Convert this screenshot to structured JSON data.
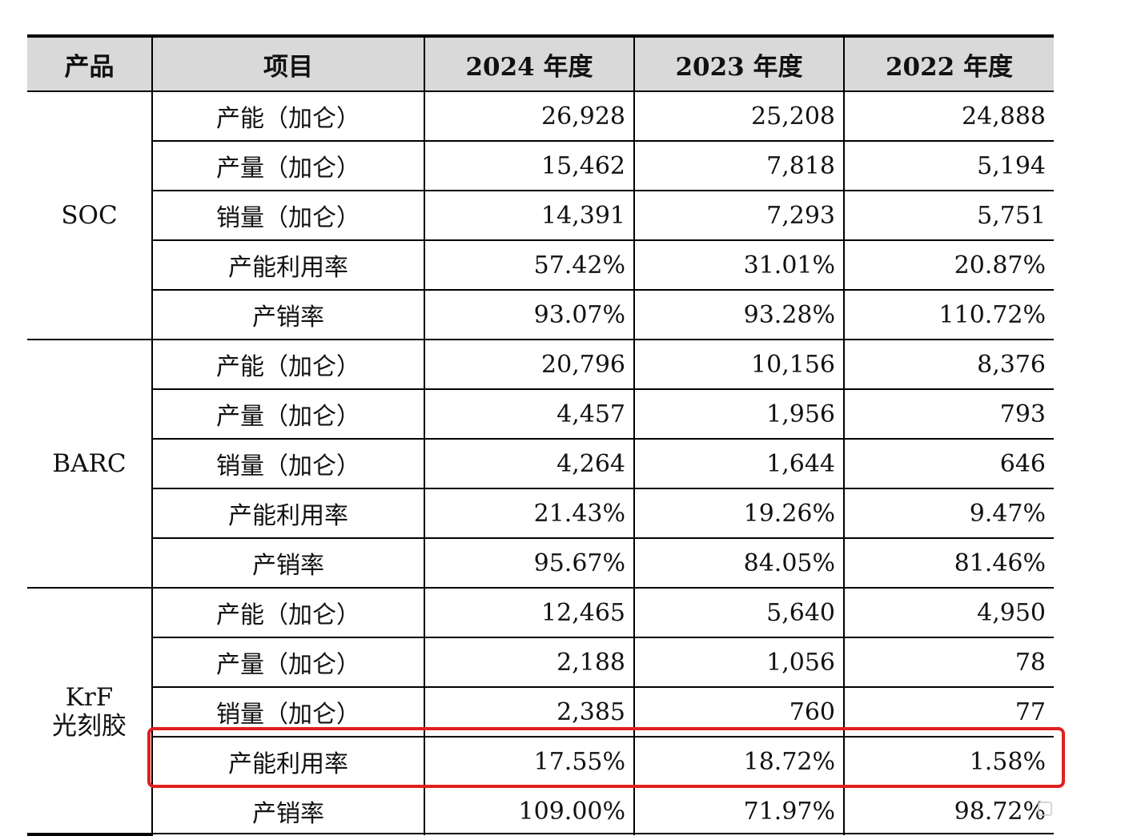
{
  "table": {
    "headers": [
      "产品",
      "项目",
      "2024 年度",
      "2023 年度",
      "2022 年度"
    ],
    "groups": [
      {
        "product": "SOC",
        "rows": [
          {
            "item": "产能（加仑）",
            "values": [
              "26,928",
              "25,208",
              "24,888"
            ]
          },
          {
            "item": "产量（加仑）",
            "values": [
              "15,462",
              "7,818",
              "5,194"
            ]
          },
          {
            "item": "销量（加仑）",
            "values": [
              "14,391",
              "7,293",
              "5,751"
            ]
          },
          {
            "item": "产能利用率",
            "values": [
              "57.42%",
              "31.01%",
              "20.87%"
            ]
          },
          {
            "item": "产销率",
            "values": [
              "93.07%",
              "93.28%",
              "110.72%"
            ]
          }
        ]
      },
      {
        "product": "BARC",
        "rows": [
          {
            "item": "产能（加仑）",
            "values": [
              "20,796",
              "10,156",
              "8,376"
            ]
          },
          {
            "item": "产量（加仑）",
            "values": [
              "4,457",
              "1,956",
              "793"
            ]
          },
          {
            "item": "销量（加仑）",
            "values": [
              "4,264",
              "1,644",
              "646"
            ]
          },
          {
            "item": "产能利用率",
            "values": [
              "21.43%",
              "19.26%",
              "9.47%"
            ]
          },
          {
            "item": "产销率",
            "values": [
              "95.67%",
              "84.05%",
              "81.46%"
            ]
          }
        ]
      },
      {
        "product": "KrF\n光刻胶",
        "rows": [
          {
            "item": "产能（加仑）",
            "values": [
              "12,465",
              "5,640",
              "4,950"
            ]
          },
          {
            "item": "产量（加仑）",
            "values": [
              "2,188",
              "1,056",
              "78"
            ]
          },
          {
            "item": "销量（加仑）",
            "values": [
              "2,385",
              "760",
              "77"
            ]
          },
          {
            "item": "产能利用率",
            "values": [
              "17.55%",
              "18.72%",
              "1.58%"
            ],
            "highlighted": true
          },
          {
            "item": "产销率",
            "values": [
              "109.00%",
              "71.97%",
              "98.72%"
            ]
          }
        ]
      }
    ]
  },
  "colors": {
    "highlight": "#e02020",
    "header_bg": "#d9d9d9"
  }
}
